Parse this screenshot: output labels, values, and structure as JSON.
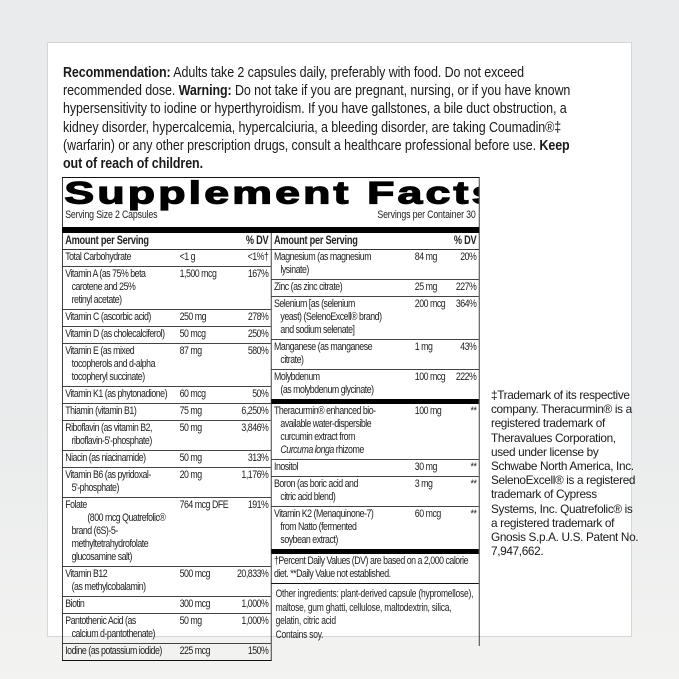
{
  "recommendation": {
    "rec_label": "Recommendation:",
    "rec_text": " Adults take 2 capsules daily, preferably with food. Do not exceed recommended dose. ",
    "warning_label": "Warning:",
    "warning_text": " Do not take if you are pregnant, nursing, or if you have known hypersensitivity to iodine or hyperthyroidism. If you have gallstones, a bile duct obstruction, a kidney disorder, hypercalcemia, hypercalciuria, a bleeding disorder, are taking Coumadin®‡ (warfarin) or any other prescription drugs, consult a healthcare professional before use. ",
    "keep_out": "Keep out of reach of children."
  },
  "facts": {
    "title": "Supplement Facts",
    "serving_size": "Serving Size 2 Capsules",
    "servings_per_container": "Servings per Container 30",
    "header_amount": "Amount per Serving",
    "header_dv": "% DV",
    "left_rows": [
      {
        "name": "Total Carbohydrate",
        "amount": "<1 g",
        "dv": "<1%†"
      },
      {
        "name": "Vitamin A (as 75% beta\ncarotene and 25%\nretinyl acetate)",
        "amount": "1,500 mcg",
        "dv": "167%"
      },
      {
        "name": "Vitamin C (ascorbic acid)",
        "amount": "250 mg",
        "dv": "278%"
      },
      {
        "name": "Vitamin D (as cholecalciferol)",
        "amount": "50 mcg",
        "dv": "250%"
      },
      {
        "name": "Vitamin E (as mixed\ntocopherols and d-alpha\ntocopheryl succinate)",
        "amount": "87 mg",
        "dv": "580%"
      },
      {
        "name": "Vitamin K1 (as phytonadione)",
        "amount": "60 mcg",
        "dv": "50%"
      },
      {
        "name": "Thiamin (vitamin B1)",
        "amount": "75 mg",
        "dv": "6,250%"
      },
      {
        "name": "Riboflavin (as vitamin B2,\nriboflavin-5'-phosphate)",
        "amount": "50 mg",
        "dv": "3,846%"
      },
      {
        "name": "Niacin (as niacinamide)",
        "amount": "50 mg",
        "dv": "313%"
      },
      {
        "name": "Vitamin B6 (as pyridoxal-\n5'-phosphate)",
        "amount": "20 mg",
        "dv": "1,176%"
      },
      {
        "name": "Folate\n        (800 mcg Quatrefolic® brand (6S)-5-\nmethyltetrahydrofolate glucosamine salt)",
        "amount": "764 mcg DFE",
        "dv": "191%"
      },
      {
        "name": "Vitamin B12\n(as methylcobalamin)",
        "amount": "500 mcg",
        "dv": "20,833%"
      },
      {
        "name": "Biotin",
        "amount": "300 mcg",
        "dv": "1,000%"
      },
      {
        "name": "Pantothenic Acid (as\ncalcium d-pantothenate)",
        "amount": "50 mg",
        "dv": "1,000%"
      },
      {
        "name": "Iodine (as potassium iodide)",
        "amount": "225 mcg",
        "dv": "150%"
      }
    ],
    "right_rows_a": [
      {
        "name": "Magnesium (as magnesium\nlysinate)",
        "amount": "84 mg",
        "dv": "20%"
      },
      {
        "name": "Zinc (as zinc citrate)",
        "amount": "25 mg",
        "dv": "227%"
      },
      {
        "name": "Selenium [as (selenium\nyeast) (SelenoExcell® brand)\nand sodium selenate]",
        "amount": "200 mcg",
        "dv": "364%"
      },
      {
        "name": "Manganese (as manganese\ncitrate)",
        "amount": "1 mg",
        "dv": "43%"
      },
      {
        "name": "Molybdenum\n(as molybdenum glycinate)",
        "amount": "100 mcg",
        "dv": "222%"
      }
    ],
    "right_rows_b": [
      {
        "name": "Theracurmin® enhanced bio-\navailable water-dispersible\ncurcumin extract from\nCurcuma longa rhizome",
        "amount": "100 mg",
        "dv": "**"
      },
      {
        "name": "Inositol",
        "amount": "30 mg",
        "dv": "**"
      },
      {
        "name": "Boron (as boric acid and\ncitric acid blend)",
        "amount": "3 mg",
        "dv": "**"
      },
      {
        "name": "Vitamin K2 (Menaquinone-7)\nfrom Natto (fermented\nsoybean extract)",
        "amount": "60 mcg",
        "dv": "**"
      }
    ],
    "footnote": "†Percent Daily Values (DV) are based on a 2,000 calorie diet. **Daily Value not established.",
    "other_ingredients": "Other ingredients: plant-derived capsule (hypromellose), maltose, gum ghatti, cellulose, maltodextrin, silica, gelatin, citric acid",
    "contains": "Contains soy."
  },
  "trademark_note": "‡Trademark of its respective company. Theracurmin® is a registered trademark of Theravalues Corporation, used under license by Schwabe North America, Inc. SelenoExcell® is a registered trademark of Cypress Systems, Inc. Quatrefolic® is a registered trademark of Gnosis S.p.A. U.S. Patent No. 7,947,662."
}
